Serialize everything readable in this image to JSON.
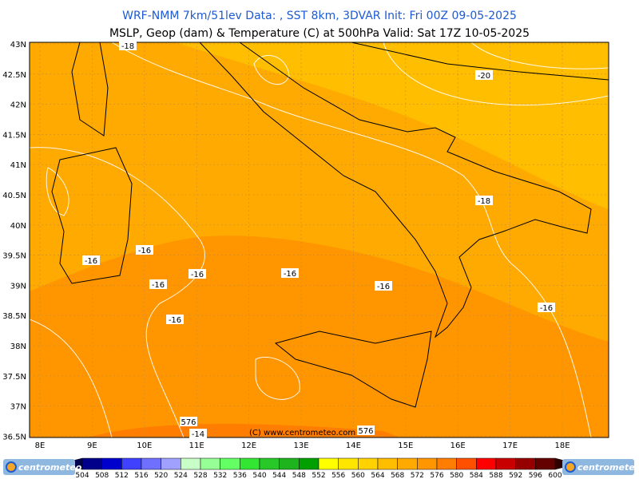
{
  "header": {
    "line1": "WRF-NMM 7km/51lev  Data: , SST 8km, 3DVAR  Init: Fri 00Z 09-05-2025",
    "line2": "MSLP, Geop (dam) & Temperature (C) at 500hPa  Valid: Sat 17Z 10-05-2025"
  },
  "lat_labels": [
    "43N",
    "42.5N",
    "42N",
    "41.5N",
    "41N",
    "40.5N",
    "40N",
    "39.5N",
    "39N",
    "38.5N",
    "38N",
    "37.5N",
    "37N",
    "36.5N"
  ],
  "lon_labels": [
    "8E",
    "9E",
    "10E",
    "11E",
    "12E",
    "13E",
    "14E",
    "15E",
    "16E",
    "17E",
    "18E"
  ],
  "contour_labels": [
    "-18",
    "-20",
    "-18",
    "-16",
    "-16",
    "-16",
    "-16",
    "-16",
    "-16",
    "-16",
    "-16",
    "576",
    "-14",
    "576"
  ],
  "copyright": "(C) www.centrometeo.com",
  "logo": "centrometeo",
  "colorbar": {
    "labels": [
      504,
      508,
      512,
      516,
      520,
      524,
      528,
      532,
      536,
      540,
      544,
      548,
      552,
      556,
      560,
      564,
      568,
      572,
      576,
      580,
      584,
      588,
      592,
      596,
      600
    ],
    "colors": [
      "#00008b",
      "#0000cd",
      "#4040ff",
      "#7070ff",
      "#a0a0ff",
      "#c8ffc8",
      "#96ff96",
      "#64ff64",
      "#32e632",
      "#28c828",
      "#1eb41e",
      "#00a000",
      "#ffff00",
      "#ffe600",
      "#ffd200",
      "#ffbe00",
      "#ffaa00",
      "#ff9600",
      "#ff7d00",
      "#ff5000",
      "#ff0000",
      "#c80000",
      "#960000",
      "#640000"
    ]
  }
}
